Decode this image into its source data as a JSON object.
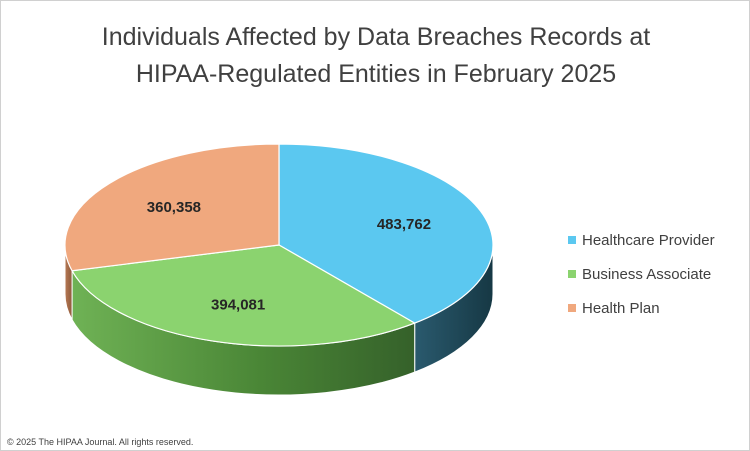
{
  "title": {
    "line1": "Individuals Affected by Data Breaches Records at",
    "line2": "HIPAA-Regulated Entities in February 2025"
  },
  "copyright": "© 2025 The HIPAA Journal. All rights reserved.",
  "chart_data": {
    "type": "pie",
    "title": "Individuals Affected by Data Breaches Records at HIPAA-Regulated Entities in February 2025",
    "legend_position": "right",
    "style": "3d",
    "slices": [
      {
        "label": "Healthcare Provider",
        "value": 483762,
        "display": "483,762",
        "color": "#5bc8f0",
        "side_color": "#1f4a5c"
      },
      {
        "label": "Business Associate",
        "value": 394081,
        "display": "394,081",
        "color": "#8bd36f",
        "side_color": "#4f8a3a"
      },
      {
        "label": "Health Plan",
        "value": 360358,
        "display": "360,358",
        "color": "#f0a87e",
        "side_color": "#a86b48"
      }
    ]
  }
}
